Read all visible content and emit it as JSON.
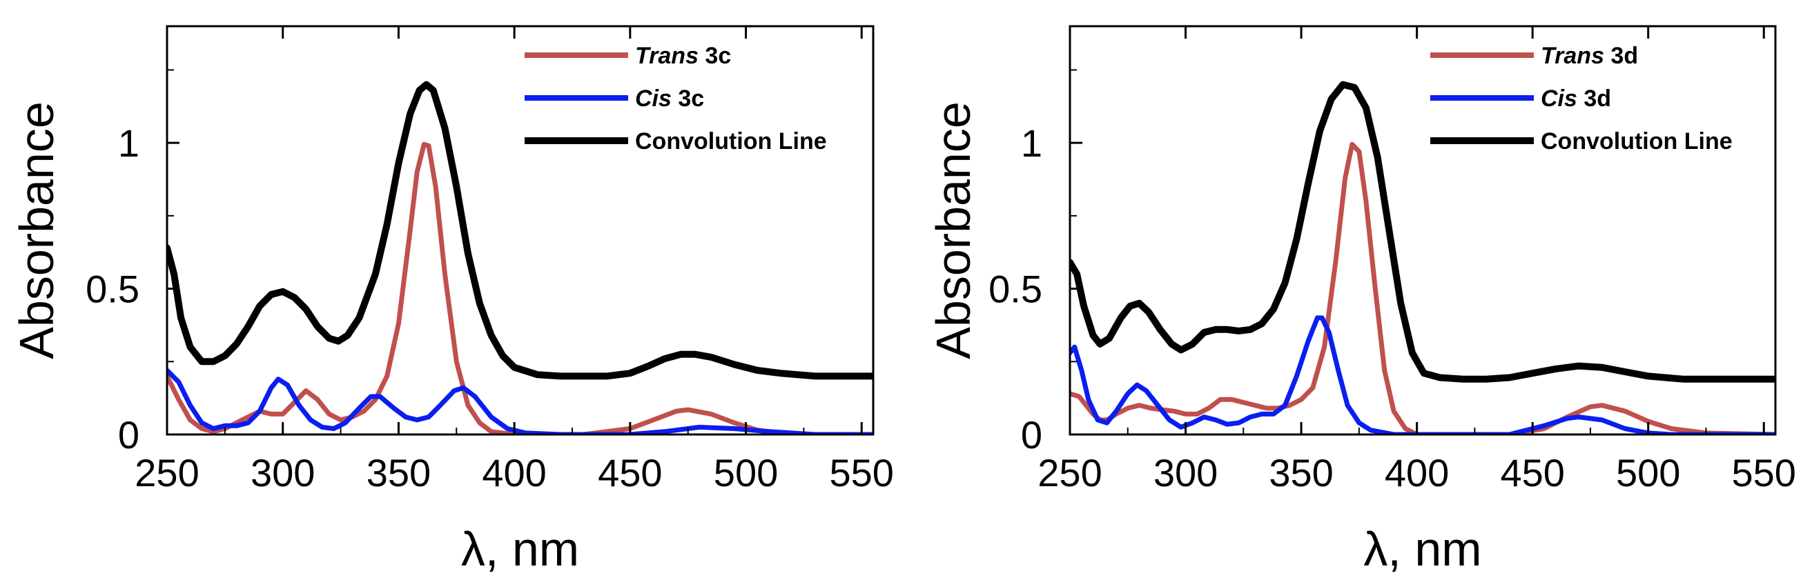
{
  "chart_data": [
    {
      "type": "line",
      "id": "left",
      "xlabel": "λ, nm",
      "ylabel": "Absorbance",
      "xlim": [
        250,
        555
      ],
      "ylim": [
        0,
        1.4
      ],
      "xticks": [
        250,
        300,
        350,
        400,
        450,
        500,
        550
      ],
      "yticks": [
        0,
        0.5,
        1
      ],
      "ytick_labels": [
        "0",
        "0.5",
        "1"
      ],
      "legend_position": "top-right",
      "series": [
        {
          "name": "Trans 3c",
          "name_italic": "Trans",
          "name_rest": " 3c",
          "color": "#c0504d",
          "points": [
            [
              250,
              0.2
            ],
            [
              255,
              0.12
            ],
            [
              260,
              0.05
            ],
            [
              265,
              0.02
            ],
            [
              270,
              0.01
            ],
            [
              275,
              0.02
            ],
            [
              280,
              0.04
            ],
            [
              285,
              0.06
            ],
            [
              290,
              0.08
            ],
            [
              295,
              0.07
            ],
            [
              300,
              0.07
            ],
            [
              305,
              0.11
            ],
            [
              310,
              0.15
            ],
            [
              315,
              0.12
            ],
            [
              320,
              0.07
            ],
            [
              325,
              0.05
            ],
            [
              330,
              0.06
            ],
            [
              335,
              0.08
            ],
            [
              340,
              0.12
            ],
            [
              345,
              0.2
            ],
            [
              350,
              0.38
            ],
            [
              355,
              0.7
            ],
            [
              358,
              0.9
            ],
            [
              361,
              0.995
            ],
            [
              363,
              0.99
            ],
            [
              366,
              0.85
            ],
            [
              370,
              0.55
            ],
            [
              375,
              0.25
            ],
            [
              380,
              0.1
            ],
            [
              385,
              0.04
            ],
            [
              390,
              0.01
            ],
            [
              400,
              0.0
            ],
            [
              430,
              0.0
            ],
            [
              450,
              0.02
            ],
            [
              460,
              0.05
            ],
            [
              470,
              0.08
            ],
            [
              475,
              0.085
            ],
            [
              485,
              0.07
            ],
            [
              495,
              0.04
            ],
            [
              505,
              0.015
            ],
            [
              520,
              0.0
            ],
            [
              555,
              0.0
            ]
          ]
        },
        {
          "name": "Cis 3c",
          "name_italic": "Cis",
          "name_rest": " 3c",
          "color": "#0a1ef0",
          "points": [
            [
              250,
              0.22
            ],
            [
              255,
              0.18
            ],
            [
              260,
              0.1
            ],
            [
              265,
              0.04
            ],
            [
              270,
              0.02
            ],
            [
              275,
              0.03
            ],
            [
              280,
              0.03
            ],
            [
              285,
              0.04
            ],
            [
              290,
              0.08
            ],
            [
              295,
              0.16
            ],
            [
              298,
              0.19
            ],
            [
              302,
              0.17
            ],
            [
              307,
              0.1
            ],
            [
              312,
              0.05
            ],
            [
              317,
              0.025
            ],
            [
              322,
              0.02
            ],
            [
              327,
              0.04
            ],
            [
              333,
              0.09
            ],
            [
              338,
              0.13
            ],
            [
              342,
              0.13
            ],
            [
              348,
              0.09
            ],
            [
              353,
              0.06
            ],
            [
              358,
              0.05
            ],
            [
              363,
              0.06
            ],
            [
              368,
              0.1
            ],
            [
              374,
              0.15
            ],
            [
              378,
              0.16
            ],
            [
              383,
              0.13
            ],
            [
              390,
              0.06
            ],
            [
              397,
              0.02
            ],
            [
              405,
              0.005
            ],
            [
              420,
              0.0
            ],
            [
              450,
              0.0
            ],
            [
              465,
              0.01
            ],
            [
              480,
              0.025
            ],
            [
              495,
              0.02
            ],
            [
              510,
              0.01
            ],
            [
              530,
              0.0
            ],
            [
              555,
              0.0
            ]
          ]
        },
        {
          "name": "Convolution Line",
          "name_italic": "",
          "name_rest": "Convolution Line",
          "color": "#000000",
          "points": [
            [
              250,
              0.64
            ],
            [
              253,
              0.55
            ],
            [
              256,
              0.4
            ],
            [
              260,
              0.3
            ],
            [
              265,
              0.25
            ],
            [
              270,
              0.25
            ],
            [
              275,
              0.27
            ],
            [
              280,
              0.31
            ],
            [
              285,
              0.37
            ],
            [
              290,
              0.44
            ],
            [
              295,
              0.48
            ],
            [
              300,
              0.49
            ],
            [
              305,
              0.47
            ],
            [
              310,
              0.43
            ],
            [
              315,
              0.37
            ],
            [
              320,
              0.33
            ],
            [
              324,
              0.32
            ],
            [
              328,
              0.34
            ],
            [
              333,
              0.4
            ],
            [
              340,
              0.55
            ],
            [
              345,
              0.72
            ],
            [
              350,
              0.93
            ],
            [
              355,
              1.1
            ],
            [
              359,
              1.18
            ],
            [
              362,
              1.2
            ],
            [
              365,
              1.18
            ],
            [
              370,
              1.05
            ],
            [
              375,
              0.85
            ],
            [
              380,
              0.62
            ],
            [
              385,
              0.45
            ],
            [
              390,
              0.34
            ],
            [
              395,
              0.27
            ],
            [
              400,
              0.23
            ],
            [
              410,
              0.205
            ],
            [
              420,
              0.2
            ],
            [
              430,
              0.2
            ],
            [
              440,
              0.2
            ],
            [
              450,
              0.21
            ],
            [
              458,
              0.235
            ],
            [
              465,
              0.26
            ],
            [
              472,
              0.275
            ],
            [
              478,
              0.275
            ],
            [
              485,
              0.265
            ],
            [
              495,
              0.24
            ],
            [
              505,
              0.22
            ],
            [
              515,
              0.21
            ],
            [
              530,
              0.2
            ],
            [
              555,
              0.2
            ]
          ]
        }
      ]
    },
    {
      "type": "line",
      "id": "right",
      "xlabel": "λ, nm",
      "ylabel": "Absorbance",
      "xlim": [
        250,
        555
      ],
      "ylim": [
        0,
        1.4
      ],
      "xticks": [
        250,
        300,
        350,
        400,
        450,
        500,
        550
      ],
      "yticks": [
        0,
        0.5,
        1
      ],
      "ytick_labels": [
        "0",
        "0.5",
        "1"
      ],
      "legend_position": "top-right",
      "series": [
        {
          "name": "Trans 3d",
          "name_italic": "Trans",
          "name_rest": " 3d",
          "color": "#c0504d",
          "points": [
            [
              250,
              0.14
            ],
            [
              254,
              0.13
            ],
            [
              257,
              0.1
            ],
            [
              260,
              0.07
            ],
            [
              263,
              0.05
            ],
            [
              266,
              0.05
            ],
            [
              270,
              0.07
            ],
            [
              275,
              0.09
            ],
            [
              280,
              0.1
            ],
            [
              285,
              0.09
            ],
            [
              290,
              0.085
            ],
            [
              295,
              0.08
            ],
            [
              300,
              0.07
            ],
            [
              305,
              0.07
            ],
            [
              310,
              0.09
            ],
            [
              315,
              0.12
            ],
            [
              320,
              0.12
            ],
            [
              325,
              0.11
            ],
            [
              330,
              0.1
            ],
            [
              335,
              0.09
            ],
            [
              340,
              0.09
            ],
            [
              345,
              0.1
            ],
            [
              350,
              0.12
            ],
            [
              355,
              0.16
            ],
            [
              360,
              0.3
            ],
            [
              365,
              0.6
            ],
            [
              369,
              0.88
            ],
            [
              372,
              0.995
            ],
            [
              375,
              0.97
            ],
            [
              378,
              0.8
            ],
            [
              382,
              0.5
            ],
            [
              386,
              0.22
            ],
            [
              390,
              0.08
            ],
            [
              395,
              0.02
            ],
            [
              400,
              0.0
            ],
            [
              440,
              0.0
            ],
            [
              455,
              0.02
            ],
            [
              465,
              0.06
            ],
            [
              475,
              0.095
            ],
            [
              480,
              0.1
            ],
            [
              490,
              0.08
            ],
            [
              500,
              0.045
            ],
            [
              510,
              0.02
            ],
            [
              525,
              0.005
            ],
            [
              555,
              0.0
            ]
          ]
        },
        {
          "name": "Cis 3d",
          "name_italic": "Cis",
          "name_rest": " 3d",
          "color": "#0a1ef0",
          "points": [
            [
              250,
              0.28
            ],
            [
              252,
              0.3
            ],
            [
              255,
              0.22
            ],
            [
              258,
              0.12
            ],
            [
              262,
              0.05
            ],
            [
              266,
              0.04
            ],
            [
              270,
              0.08
            ],
            [
              275,
              0.14
            ],
            [
              279,
              0.17
            ],
            [
              283,
              0.15
            ],
            [
              288,
              0.1
            ],
            [
              293,
              0.05
            ],
            [
              298,
              0.025
            ],
            [
              303,
              0.04
            ],
            [
              308,
              0.06
            ],
            [
              313,
              0.05
            ],
            [
              318,
              0.035
            ],
            [
              323,
              0.04
            ],
            [
              328,
              0.06
            ],
            [
              333,
              0.07
            ],
            [
              338,
              0.07
            ],
            [
              343,
              0.1
            ],
            [
              348,
              0.2
            ],
            [
              353,
              0.32
            ],
            [
              357,
              0.4
            ],
            [
              359,
              0.4
            ],
            [
              362,
              0.35
            ],
            [
              366,
              0.22
            ],
            [
              370,
              0.1
            ],
            [
              375,
              0.04
            ],
            [
              380,
              0.015
            ],
            [
              390,
              0.0
            ],
            [
              440,
              0.0
            ],
            [
              455,
              0.03
            ],
            [
              465,
              0.055
            ],
            [
              470,
              0.06
            ],
            [
              480,
              0.05
            ],
            [
              490,
              0.02
            ],
            [
              500,
              0.005
            ],
            [
              510,
              0.0
            ],
            [
              555,
              0.0
            ]
          ]
        },
        {
          "name": "Convolution Line",
          "name_italic": "",
          "name_rest": "Convolution Line",
          "color": "#000000",
          "points": [
            [
              250,
              0.59
            ],
            [
              253,
              0.55
            ],
            [
              256,
              0.44
            ],
            [
              260,
              0.34
            ],
            [
              263,
              0.31
            ],
            [
              267,
              0.33
            ],
            [
              272,
              0.4
            ],
            [
              276,
              0.44
            ],
            [
              280,
              0.45
            ],
            [
              284,
              0.42
            ],
            [
              289,
              0.36
            ],
            [
              294,
              0.31
            ],
            [
              298,
              0.29
            ],
            [
              303,
              0.31
            ],
            [
              308,
              0.35
            ],
            [
              313,
              0.36
            ],
            [
              318,
              0.36
            ],
            [
              323,
              0.355
            ],
            [
              328,
              0.36
            ],
            [
              333,
              0.38
            ],
            [
              338,
              0.43
            ],
            [
              343,
              0.52
            ],
            [
              348,
              0.67
            ],
            [
              353,
              0.86
            ],
            [
              358,
              1.04
            ],
            [
              363,
              1.15
            ],
            [
              368,
              1.2
            ],
            [
              373,
              1.19
            ],
            [
              378,
              1.12
            ],
            [
              383,
              0.95
            ],
            [
              388,
              0.7
            ],
            [
              393,
              0.45
            ],
            [
              398,
              0.28
            ],
            [
              403,
              0.21
            ],
            [
              410,
              0.195
            ],
            [
              420,
              0.19
            ],
            [
              430,
              0.19
            ],
            [
              440,
              0.195
            ],
            [
              450,
              0.21
            ],
            [
              460,
              0.225
            ],
            [
              470,
              0.235
            ],
            [
              480,
              0.23
            ],
            [
              490,
              0.215
            ],
            [
              500,
              0.2
            ],
            [
              515,
              0.19
            ],
            [
              535,
              0.19
            ],
            [
              555,
              0.19
            ]
          ]
        }
      ]
    }
  ]
}
